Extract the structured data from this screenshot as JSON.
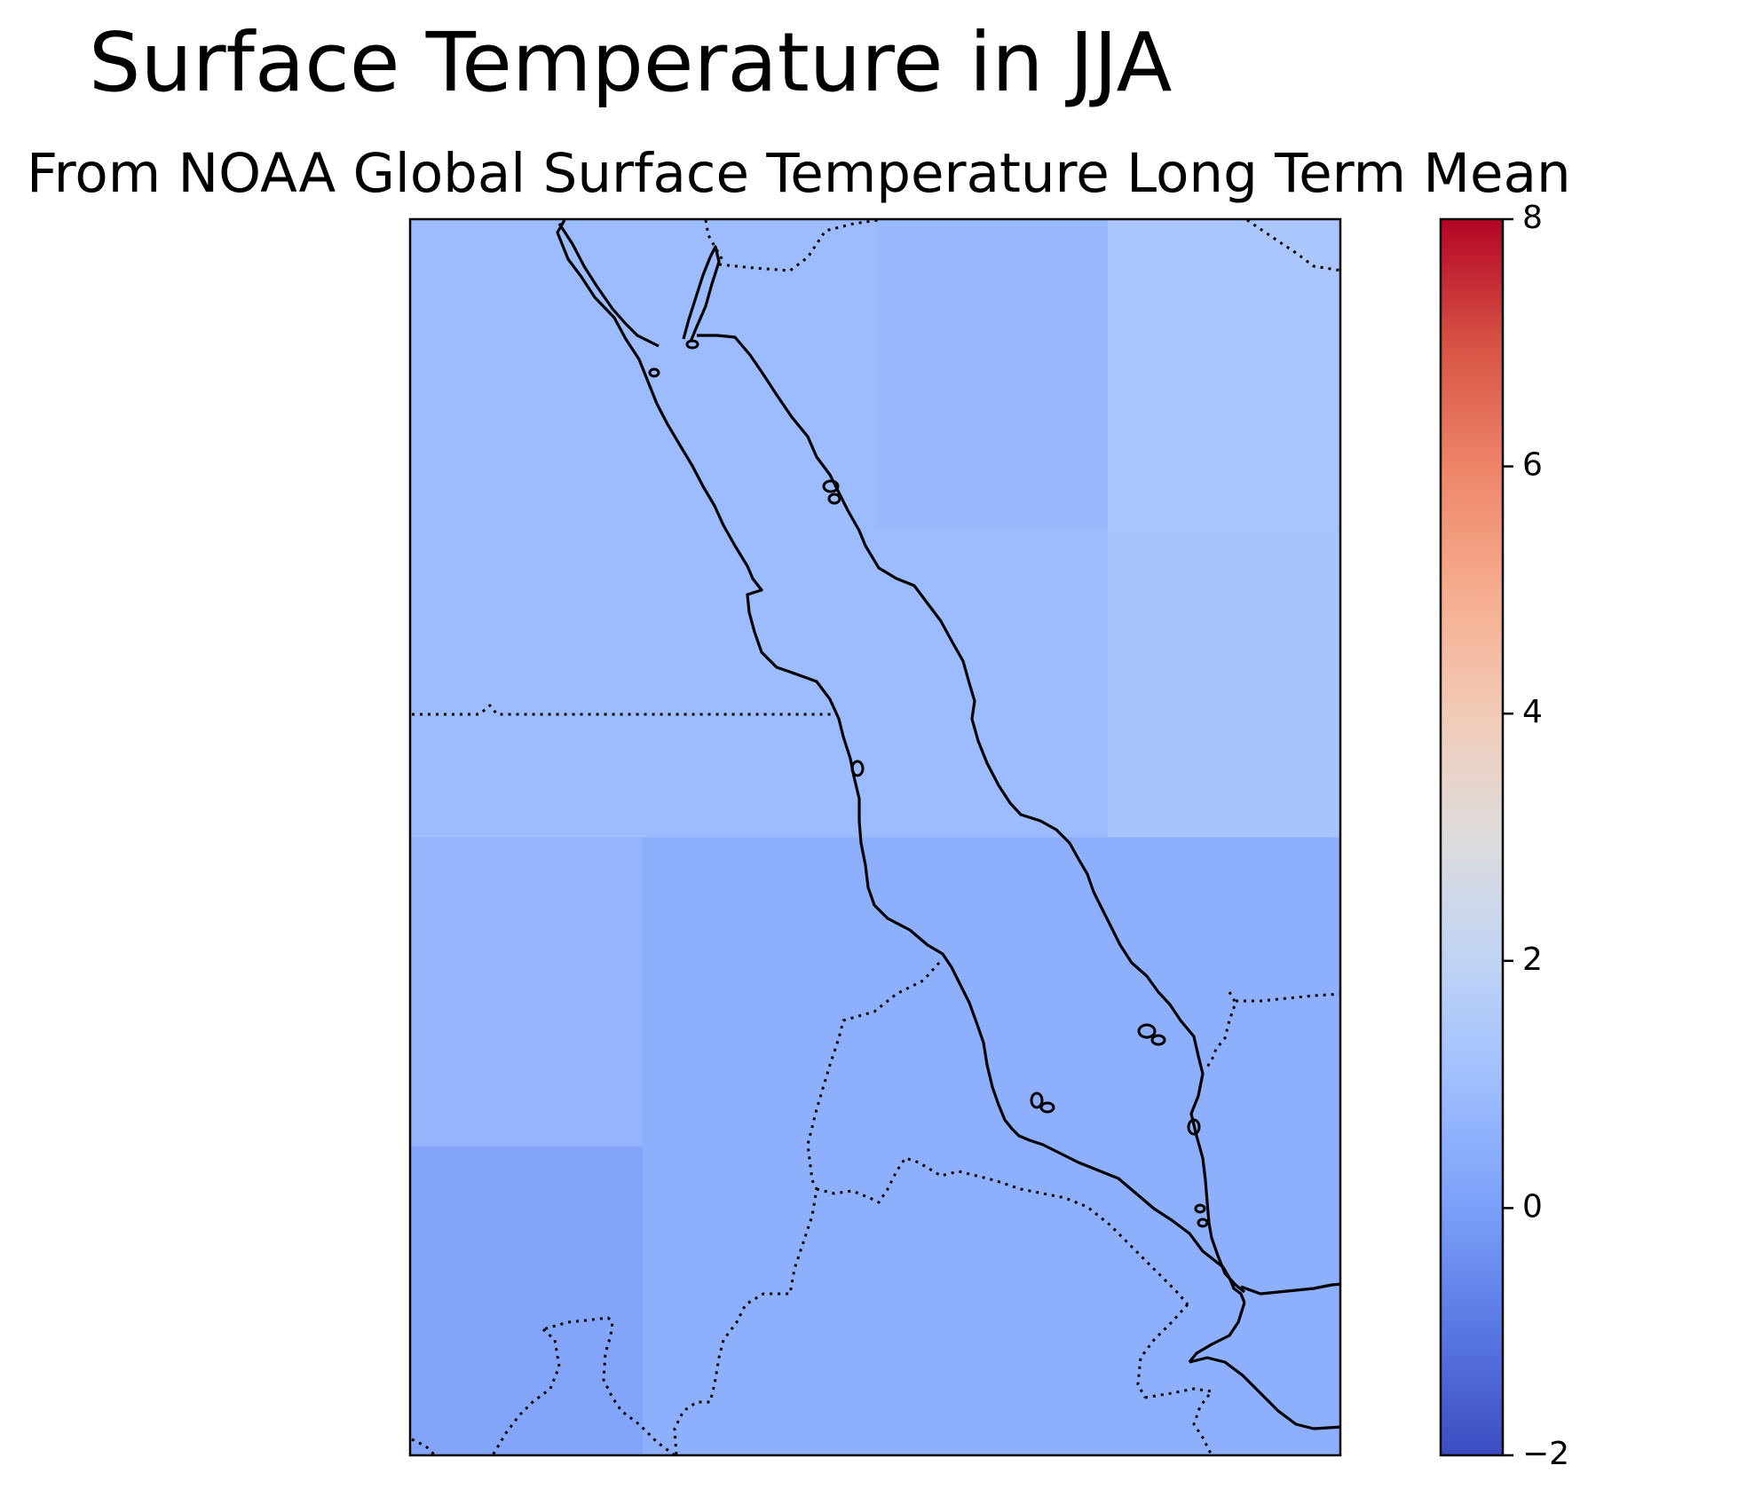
{
  "title": "Surface Temperature in JJA",
  "subtitle": "From NOAA Global Surface Temperature Long Term Mean",
  "colors": {
    "border": "#000000",
    "background": "#ffffff"
  },
  "chart_data": {
    "type": "heatmap",
    "colormap": "coolwarm",
    "grid": false,
    "colorbar": {
      "position": "right",
      "min": -2,
      "max": 8,
      "ticks": [
        -2,
        0,
        2,
        4,
        6,
        8
      ],
      "tick_labels": [
        "−2",
        "0",
        "2",
        "4",
        "6",
        "8"
      ]
    },
    "cells": [
      [
        0.95,
        0.95,
        0.85,
        1.35
      ],
      [
        0.95,
        0.95,
        0.95,
        1.25
      ],
      [
        0.7,
        0.55,
        0.55,
        0.55
      ],
      [
        0.2,
        0.5,
        0.5,
        0.5
      ]
    ],
    "overlays": [
      "coastlines",
      "country borders (dotted)"
    ]
  }
}
